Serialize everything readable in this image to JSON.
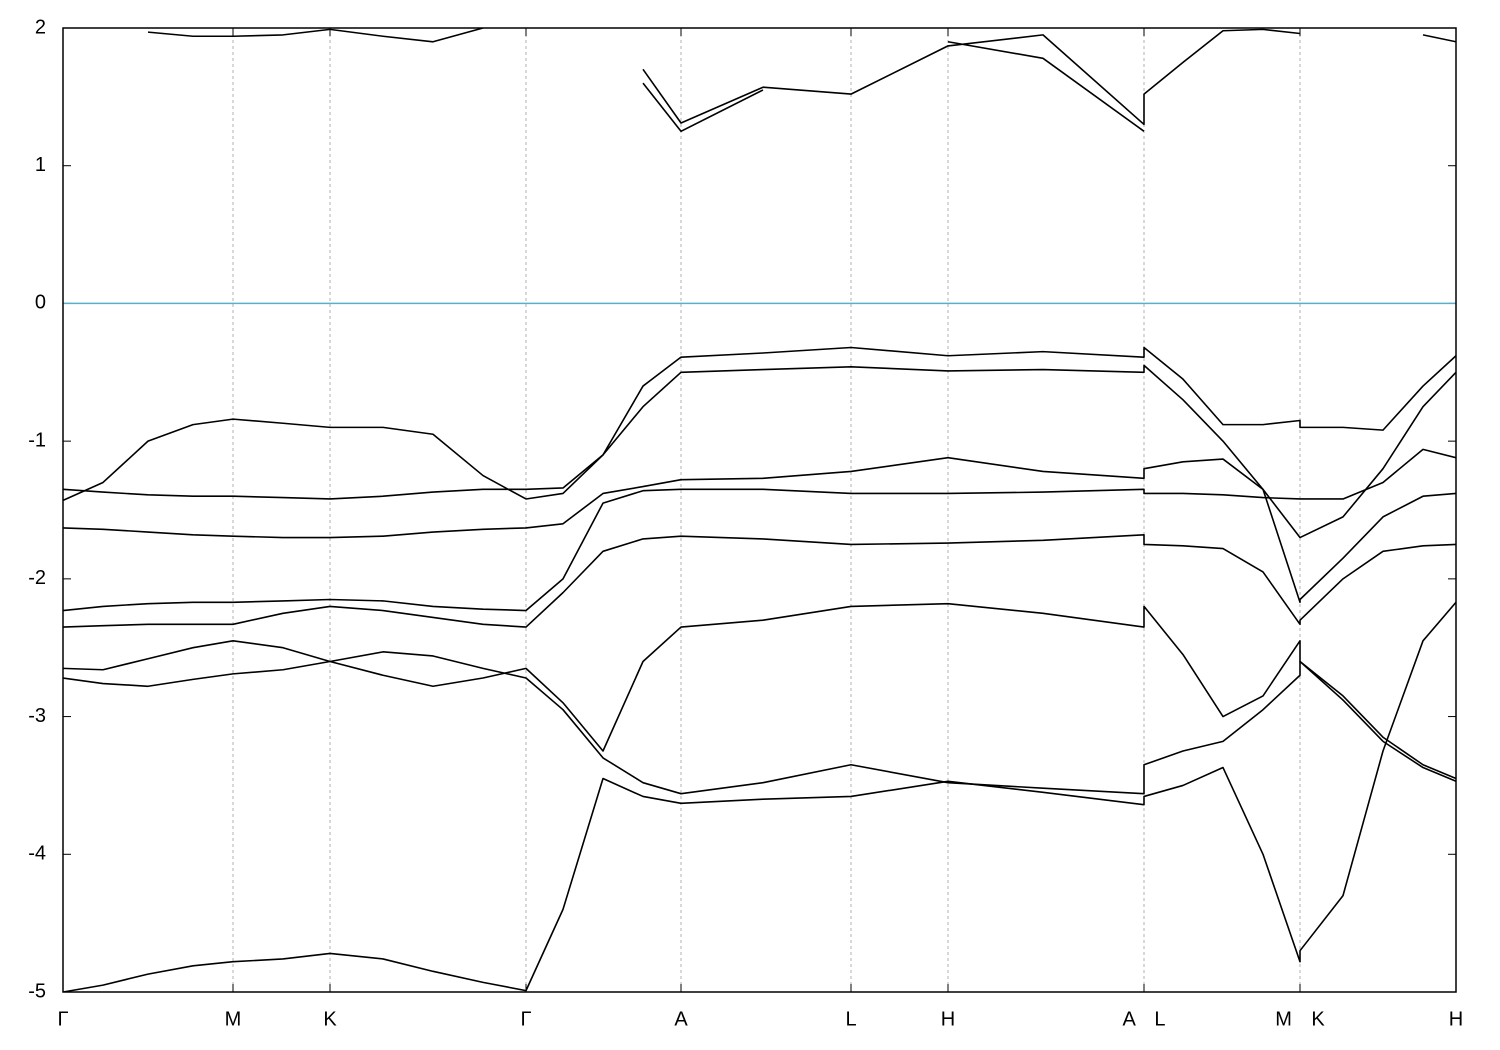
{
  "chart_data": {
    "type": "line",
    "xlim": [
      0,
      1393
    ],
    "ylim": [
      -5,
      2
    ],
    "yticks": [
      -5,
      -4,
      -3,
      -2,
      -1,
      0,
      1,
      2
    ],
    "xticks": [
      {
        "value": 0,
        "label": "Γ"
      },
      {
        "value": 170,
        "label": "M"
      },
      {
        "value": 267,
        "label": "K"
      },
      {
        "value": 463,
        "label": "Γ"
      },
      {
        "value": 618,
        "label": "A"
      },
      {
        "value": 788,
        "label": "L"
      },
      {
        "value": 885,
        "label": "H"
      },
      {
        "value": 1081,
        "label": "A L"
      },
      {
        "value": 1237,
        "label": "M K"
      },
      {
        "value": 1393,
        "label": "H"
      }
    ],
    "grid": true,
    "fermi_level": 0,
    "fermi_color": "#5ab0c8",
    "x": [
      0,
      40,
      85,
      130,
      170,
      220,
      267,
      320,
      370,
      420,
      463,
      500,
      540,
      580,
      618,
      700,
      788,
      885,
      980,
      1081,
      1081,
      1120,
      1160,
      1200,
      1237,
      1237,
      1280,
      1320,
      1360,
      1393
    ],
    "series": [
      {
        "color": "#000000",
        "values": [
          -5.0,
          -4.95,
          -4.87,
          -4.81,
          -4.78,
          -4.76,
          -4.72,
          -4.76,
          -4.85,
          -4.93,
          -4.99,
          -4.4,
          -3.45,
          -3.58,
          -3.63,
          -3.6,
          -3.58,
          -3.47,
          -3.55,
          -3.64,
          -3.58,
          -3.5,
          -3.37,
          -4.0,
          -4.78,
          -4.7,
          -4.3,
          -3.25,
          -2.45,
          -2.17
        ]
      },
      {
        "color": "#000000",
        "values": [
          -2.72,
          -2.76,
          -2.78,
          -2.73,
          -2.69,
          -2.66,
          -2.6,
          -2.53,
          -2.56,
          -2.65,
          -2.72,
          -2.95,
          -3.3,
          -3.48,
          -3.56,
          -3.48,
          -3.35,
          -3.48,
          -3.52,
          -3.56,
          -3.35,
          -3.25,
          -3.18,
          -2.95,
          -2.7,
          -2.6,
          -2.85,
          -3.15,
          -3.35,
          -3.45
        ]
      },
      {
        "color": "#000000",
        "values": [
          -2.65,
          -2.66,
          -2.58,
          -2.5,
          -2.45,
          -2.5,
          -2.6,
          -2.7,
          -2.78,
          -2.72,
          -2.65,
          -2.9,
          -3.25,
          -2.6,
          -2.35,
          -2.3,
          -2.2,
          -2.18,
          -2.25,
          -2.35,
          -2.2,
          -2.55,
          -3.0,
          -2.85,
          -2.45,
          -2.6,
          -2.88,
          -3.18,
          -3.37,
          -3.47
        ]
      },
      {
        "color": "#000000",
        "values": [
          -2.35,
          -2.34,
          -2.33,
          -2.33,
          -2.33,
          -2.25,
          -2.2,
          -2.23,
          -2.28,
          -2.33,
          -2.35,
          -2.1,
          -1.8,
          -1.71,
          -1.69,
          -1.71,
          -1.75,
          -1.74,
          -1.72,
          -1.68,
          -1.75,
          -1.76,
          -1.78,
          -1.95,
          -2.33,
          -2.3,
          -2.0,
          -1.8,
          -1.76,
          -1.75
        ]
      },
      {
        "color": "#000000",
        "values": [
          -2.23,
          -2.2,
          -2.18,
          -2.17,
          -2.17,
          -2.16,
          -2.15,
          -2.16,
          -2.2,
          -2.22,
          -2.23,
          -2.0,
          -1.45,
          -1.36,
          -1.35,
          -1.35,
          -1.38,
          -1.38,
          -1.37,
          -1.35,
          -1.38,
          -1.38,
          -1.39,
          -1.41,
          -1.42,
          -1.42,
          -1.42,
          -1.3,
          -1.06,
          -1.12
        ]
      },
      {
        "color": "#000000",
        "values": [
          -1.63,
          -1.64,
          -1.66,
          -1.68,
          -1.69,
          -1.7,
          -1.7,
          -1.69,
          -1.66,
          -1.64,
          -1.63,
          -1.6,
          -1.38,
          -1.33,
          -1.28,
          -1.27,
          -1.22,
          -1.12,
          -1.22,
          -1.27,
          -1.2,
          -1.15,
          -1.13,
          -1.35,
          -2.17,
          -2.15,
          -1.85,
          -1.55,
          -1.4,
          -1.38
        ]
      },
      {
        "color": "#000000",
        "values": [
          -1.35,
          -1.37,
          -1.39,
          -1.4,
          -1.4,
          -1.41,
          -1.42,
          -1.4,
          -1.37,
          -1.35,
          -1.35,
          -1.34,
          -1.1,
          -0.75,
          -0.5,
          -0.48,
          -0.46,
          -0.49,
          -0.48,
          -0.5,
          -0.45,
          -0.7,
          -1.0,
          -1.35,
          -1.7,
          -1.7,
          -1.55,
          -1.2,
          -0.75,
          -0.5
        ]
      },
      {
        "color": "#000000",
        "values": [
          -1.43,
          -1.3,
          -1.0,
          -0.88,
          -0.84,
          -0.87,
          -0.9,
          -0.9,
          -0.95,
          -1.25,
          -1.42,
          -1.38,
          -1.1,
          -0.6,
          -0.39,
          -0.36,
          -0.32,
          -0.38,
          -0.35,
          -0.39,
          -0.32,
          -0.55,
          -0.88,
          -0.88,
          -0.85,
          -0.9,
          -0.9,
          -0.92,
          -0.6,
          -0.38
        ]
      },
      {
        "color": "#000000",
        "values": [
          null,
          null,
          1.97,
          1.94,
          1.94,
          1.95,
          1.99,
          1.94,
          1.9,
          2.0,
          null,
          null,
          null,
          1.7,
          1.31,
          1.57,
          1.52,
          1.87,
          1.95,
          1.3,
          1.52,
          1.75,
          1.98,
          1.99,
          1.96,
          null,
          null,
          null,
          null,
          null
        ]
      },
      {
        "color": "#000000",
        "values": [
          null,
          null,
          null,
          null,
          null,
          null,
          null,
          null,
          null,
          null,
          null,
          null,
          null,
          1.6,
          1.25,
          1.55,
          null,
          1.9,
          1.78,
          1.25,
          null,
          null,
          null,
          null,
          null,
          null,
          null,
          null,
          1.95,
          1.9
        ]
      }
    ]
  }
}
